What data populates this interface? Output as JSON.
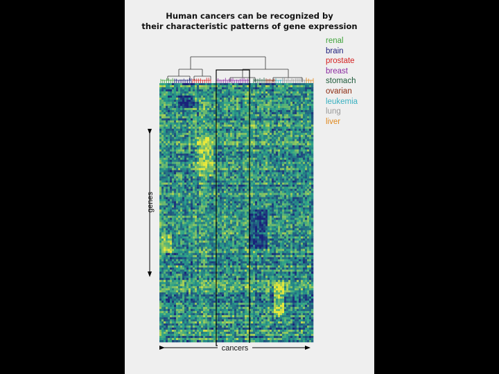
{
  "title": {
    "line1": "Human cancers can be recognized by",
    "line2": "their characteristic patterns of gene expression"
  },
  "legend": [
    {
      "label": "renal",
      "color": "#3fa33a"
    },
    {
      "label": "brain",
      "color": "#1c1c7a"
    },
    {
      "label": "prostate",
      "color": "#d42020"
    },
    {
      "label": "breast",
      "color": "#8a2aa0"
    },
    {
      "label": "stomach",
      "color": "#1e5a3a"
    },
    {
      "label": "ovarian",
      "color": "#8b2a10"
    },
    {
      "label": "leukemia",
      "color": "#38b0c0"
    },
    {
      "label": "lung",
      "color": "#9a9a9a"
    },
    {
      "label": "liver",
      "color": "#e08a20"
    }
  ],
  "axes": {
    "genes_label": "genes",
    "cancers_label": "cancers"
  },
  "colors": {
    "low": "#1a237a",
    "mid": "#2aa08a",
    "high": "#e8e83a"
  }
}
